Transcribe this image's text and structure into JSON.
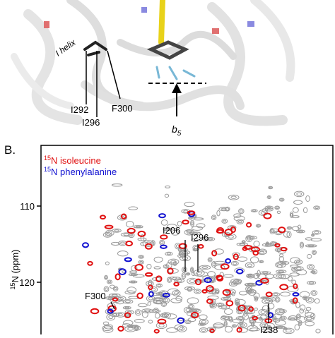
{
  "panel_a": {
    "helix_label": "I helix",
    "residues": [
      "I292",
      "I296",
      "F300"
    ],
    "b5": {
      "base": "b",
      "subscript": "5"
    }
  },
  "panel_b": {
    "label": "B.",
    "legend": [
      {
        "superscript": "15",
        "text": "N isoleucine",
        "color": "#e01010"
      },
      {
        "superscript": "15",
        "text": "N phenylalanine",
        "color": "#1010d0"
      }
    ],
    "y_axis_label": {
      "superscript": "15",
      "text": "N (ppm)"
    },
    "yticks": [
      "110",
      "120"
    ],
    "peak_labels": [
      "I206",
      "I296",
      "F300",
      "I238"
    ]
  }
}
